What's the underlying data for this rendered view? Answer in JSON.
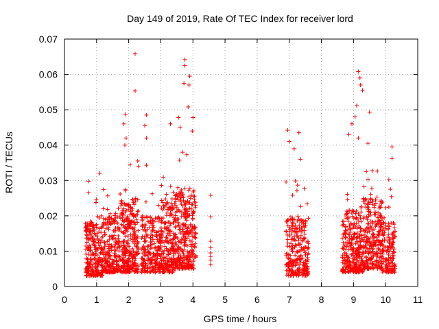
{
  "chart_data": {
    "type": "scatter",
    "title": "Day 149 of 2019, Rate Of TEC Index for receiver lord",
    "xlabel": "GPS time / hours",
    "ylabel": "ROTI / TECUs",
    "xlim": [
      0,
      11
    ],
    "ylim": [
      0,
      0.07
    ],
    "xticks": [
      "0",
      "1",
      "2",
      "3",
      "4",
      "5",
      "6",
      "7",
      "8",
      "9",
      "10",
      "11"
    ],
    "yticks": [
      "0",
      "0.01",
      "0.02",
      "0.03",
      "0.04",
      "0.05",
      "0.06",
      "0.07"
    ],
    "grid": true,
    "marker": "+",
    "series_color": "#ff0000",
    "series": [
      {
        "name": "ROTI",
        "clusters": [
          {
            "x_range": [
              0.65,
              1.2
            ],
            "y_base": [
              0.003,
              0.018
            ],
            "n": 260
          },
          {
            "x_range": [
              1.2,
              1.75
            ],
            "y_base": [
              0.004,
              0.02
            ],
            "n": 220
          },
          {
            "x_range": [
              1.75,
              2.3
            ],
            "y_base": [
              0.004,
              0.025
            ],
            "n": 300
          },
          {
            "x_range": [
              2.4,
              3.0
            ],
            "y_base": [
              0.004,
              0.02
            ],
            "n": 240
          },
          {
            "x_range": [
              3.0,
              3.45
            ],
            "y_base": [
              0.004,
              0.024
            ],
            "n": 220
          },
          {
            "x_range": [
              3.45,
              4.1
            ],
            "y_base": [
              0.005,
              0.028
            ],
            "n": 320
          },
          {
            "x_range": [
              6.9,
              7.6
            ],
            "y_base": [
              0.003,
              0.02
            ],
            "n": 260
          },
          {
            "x_range": [
              8.65,
              9.3
            ],
            "y_base": [
              0.004,
              0.022
            ],
            "n": 300
          },
          {
            "x_range": [
              9.3,
              9.9
            ],
            "y_base": [
              0.005,
              0.025
            ],
            "n": 280
          },
          {
            "x_range": [
              9.9,
              10.3
            ],
            "y_base": [
              0.004,
              0.018
            ],
            "n": 140
          }
        ],
        "notable_points": [
          {
            "x": 2.2,
            "y": 0.0658
          },
          {
            "x": 2.2,
            "y": 0.0553
          },
          {
            "x": 1.9,
            "y": 0.0487
          },
          {
            "x": 1.85,
            "y": 0.046
          },
          {
            "x": 1.92,
            "y": 0.042
          },
          {
            "x": 1.88,
            "y": 0.04
          },
          {
            "x": 2.55,
            "y": 0.0485
          },
          {
            "x": 2.5,
            "y": 0.0455
          },
          {
            "x": 2.55,
            "y": 0.042
          },
          {
            "x": 2.55,
            "y": 0.0343
          },
          {
            "x": 3.75,
            "y": 0.0642
          },
          {
            "x": 3.75,
            "y": 0.0625
          },
          {
            "x": 3.72,
            "y": 0.0575
          },
          {
            "x": 3.9,
            "y": 0.0595
          },
          {
            "x": 3.88,
            "y": 0.057
          },
          {
            "x": 3.85,
            "y": 0.0508
          },
          {
            "x": 3.55,
            "y": 0.0478
          },
          {
            "x": 3.6,
            "y": 0.045
          },
          {
            "x": 3.3,
            "y": 0.046
          },
          {
            "x": 4.0,
            "y": 0.0478
          },
          {
            "x": 3.98,
            "y": 0.044
          },
          {
            "x": 2.3,
            "y": 0.034
          },
          {
            "x": 1.1,
            "y": 0.032
          },
          {
            "x": 0.75,
            "y": 0.0298
          },
          {
            "x": 4.55,
            "y": 0.0258
          },
          {
            "x": 4.55,
            "y": 0.0197
          },
          {
            "x": 4.55,
            "y": 0.0128
          },
          {
            "x": 4.55,
            "y": 0.011
          },
          {
            "x": 4.55,
            "y": 0.0095
          },
          {
            "x": 4.55,
            "y": 0.0085
          },
          {
            "x": 4.55,
            "y": 0.0075
          },
          {
            "x": 4.55,
            "y": 0.0062
          },
          {
            "x": 6.95,
            "y": 0.0442
          },
          {
            "x": 7.3,
            "y": 0.0435
          },
          {
            "x": 7.0,
            "y": 0.041
          },
          {
            "x": 7.15,
            "y": 0.039
          },
          {
            "x": 7.35,
            "y": 0.036
          },
          {
            "x": 9.15,
            "y": 0.0608
          },
          {
            "x": 9.2,
            "y": 0.059
          },
          {
            "x": 9.22,
            "y": 0.057
          },
          {
            "x": 9.28,
            "y": 0.0555
          },
          {
            "x": 9.1,
            "y": 0.0512
          },
          {
            "x": 9.05,
            "y": 0.048
          },
          {
            "x": 9.5,
            "y": 0.0493
          },
          {
            "x": 8.95,
            "y": 0.046
          },
          {
            "x": 8.85,
            "y": 0.043
          },
          {
            "x": 9.15,
            "y": 0.042
          },
          {
            "x": 9.45,
            "y": 0.0405
          },
          {
            "x": 10.2,
            "y": 0.0395
          },
          {
            "x": 10.2,
            "y": 0.0362
          },
          {
            "x": 10.15,
            "y": 0.0275
          },
          {
            "x": 9.4,
            "y": 0.0325
          },
          {
            "x": 10.1,
            "y": 0.0302
          }
        ]
      }
    ]
  }
}
